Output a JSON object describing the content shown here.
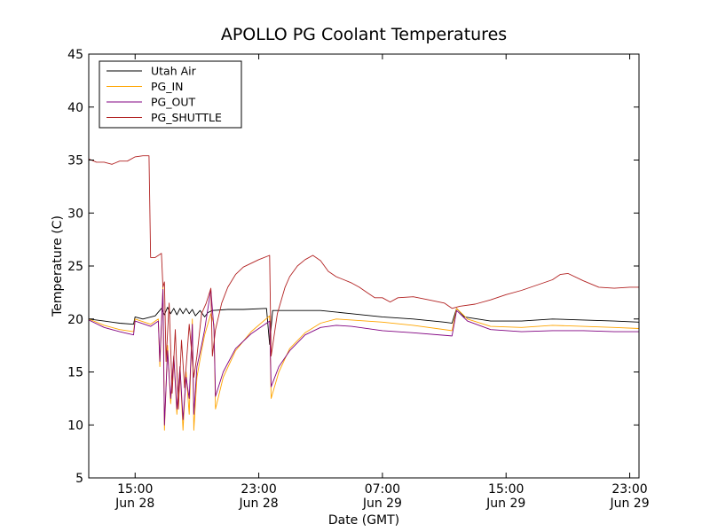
{
  "chart_data": {
    "type": "line",
    "title": "APOLLO PG Coolant Temperatures",
    "xlabel": "Date (GMT)",
    "ylabel": "Temperature (C)",
    "x_unit": "hours since 2013-06-28 12:00 GMT",
    "xlim": [
      0,
      35.6
    ],
    "ylim": [
      5,
      45
    ],
    "yticks": [
      5,
      10,
      15,
      20,
      25,
      30,
      35,
      40,
      45
    ],
    "xticks": [
      {
        "x": 3,
        "time": "15:00",
        "date": "Jun 28"
      },
      {
        "x": 11,
        "time": "23:00",
        "date": "Jun 28"
      },
      {
        "x": 19,
        "time": "07:00",
        "date": "Jun 29"
      },
      {
        "x": 27,
        "time": "15:00",
        "date": "Jun 29"
      },
      {
        "x": 35,
        "time": "23:00",
        "date": "Jun 29"
      }
    ],
    "legend_position": "top-left",
    "series": [
      {
        "name": "Utah Air",
        "color": "#000000",
        "points": [
          [
            0,
            20.0
          ],
          [
            1,
            19.8
          ],
          [
            2,
            19.6
          ],
          [
            2.9,
            19.5
          ],
          [
            3.0,
            20.2
          ],
          [
            3.5,
            20.0
          ],
          [
            4.3,
            20.3
          ],
          [
            4.7,
            21.0
          ],
          [
            4.9,
            20.4
          ],
          [
            5.1,
            21.1
          ],
          [
            5.3,
            20.5
          ],
          [
            5.5,
            21.0
          ],
          [
            5.7,
            20.4
          ],
          [
            5.9,
            21.0
          ],
          [
            6.1,
            20.5
          ],
          [
            6.3,
            21.0
          ],
          [
            6.5,
            20.5
          ],
          [
            6.7,
            20.9
          ],
          [
            6.9,
            20.3
          ],
          [
            7.2,
            20.8
          ],
          [
            7.5,
            20.2
          ],
          [
            7.7,
            20.6
          ],
          [
            8.0,
            20.8
          ],
          [
            9,
            20.9
          ],
          [
            10,
            20.9
          ],
          [
            11.5,
            21.0
          ],
          [
            11.7,
            17.6
          ],
          [
            11.9,
            20.8
          ],
          [
            13,
            20.8
          ],
          [
            15,
            20.8
          ],
          [
            17,
            20.5
          ],
          [
            19,
            20.2
          ],
          [
            21,
            20.0
          ],
          [
            23,
            19.7
          ],
          [
            23.5,
            19.6
          ],
          [
            23.8,
            21.0
          ],
          [
            24.3,
            20.2
          ],
          [
            26,
            19.8
          ],
          [
            28,
            19.8
          ],
          [
            30,
            20.0
          ],
          [
            32,
            19.9
          ],
          [
            34,
            19.8
          ],
          [
            35.6,
            19.7
          ]
        ]
      },
      {
        "name": "PG_IN",
        "color": "#ffa500",
        "points": [
          [
            0,
            20.0
          ],
          [
            1,
            19.4
          ],
          [
            2,
            19.0
          ],
          [
            2.9,
            18.8
          ],
          [
            3.0,
            20.0
          ],
          [
            4.0,
            19.5
          ],
          [
            4.5,
            20.0
          ],
          [
            4.6,
            15.5
          ],
          [
            4.8,
            23.0
          ],
          [
            4.9,
            9.5
          ],
          [
            5.1,
            17.5
          ],
          [
            5.3,
            12.0
          ],
          [
            5.5,
            16.5
          ],
          [
            5.7,
            11.0
          ],
          [
            5.9,
            15.5
          ],
          [
            6.1,
            9.5
          ],
          [
            6.3,
            15.0
          ],
          [
            6.5,
            11.0
          ],
          [
            6.7,
            20.0
          ],
          [
            6.8,
            9.5
          ],
          [
            7.0,
            14.5
          ],
          [
            7.3,
            17.0
          ],
          [
            7.5,
            18.5
          ],
          [
            7.9,
            20.5
          ],
          [
            8.1,
            19.5
          ],
          [
            8.2,
            11.5
          ],
          [
            8.7,
            14.5
          ],
          [
            9.5,
            17.0
          ],
          [
            10.5,
            18.8
          ],
          [
            11.7,
            20.3
          ],
          [
            11.8,
            12.5
          ],
          [
            12.3,
            15.0
          ],
          [
            13,
            17.2
          ],
          [
            14,
            18.7
          ],
          [
            15,
            19.6
          ],
          [
            16,
            20.0
          ],
          [
            17,
            19.9
          ],
          [
            19,
            19.7
          ],
          [
            21,
            19.4
          ],
          [
            23.5,
            18.9
          ],
          [
            23.8,
            21.0
          ],
          [
            24.5,
            20.0
          ],
          [
            26,
            19.3
          ],
          [
            28,
            19.2
          ],
          [
            30,
            19.4
          ],
          [
            32,
            19.3
          ],
          [
            34,
            19.2
          ],
          [
            35.6,
            19.1
          ]
        ]
      },
      {
        "name": "PG_OUT",
        "color": "#800080",
        "points": [
          [
            0,
            19.9
          ],
          [
            1,
            19.2
          ],
          [
            2,
            18.8
          ],
          [
            2.9,
            18.5
          ],
          [
            3.0,
            19.8
          ],
          [
            4.0,
            19.3
          ],
          [
            4.5,
            19.8
          ],
          [
            4.6,
            16.0
          ],
          [
            4.8,
            22.8
          ],
          [
            4.9,
            10.0
          ],
          [
            5.1,
            17.0
          ],
          [
            5.3,
            12.5
          ],
          [
            5.5,
            16.5
          ],
          [
            5.7,
            11.5
          ],
          [
            5.9,
            15.5
          ],
          [
            6.1,
            10.5
          ],
          [
            6.3,
            14.5
          ],
          [
            6.5,
            12.5
          ],
          [
            6.7,
            19.5
          ],
          [
            6.8,
            11.0
          ],
          [
            7.0,
            15.5
          ],
          [
            7.3,
            17.5
          ],
          [
            7.5,
            19.0
          ],
          [
            7.9,
            22.8
          ],
          [
            8.1,
            19.0
          ],
          [
            8.2,
            12.7
          ],
          [
            8.7,
            15.0
          ],
          [
            9.5,
            17.2
          ],
          [
            10.5,
            18.6
          ],
          [
            11.7,
            19.8
          ],
          [
            11.8,
            13.6
          ],
          [
            12.3,
            15.5
          ],
          [
            13,
            17.0
          ],
          [
            14,
            18.5
          ],
          [
            15,
            19.2
          ],
          [
            16,
            19.4
          ],
          [
            17,
            19.3
          ],
          [
            19,
            18.9
          ],
          [
            21,
            18.7
          ],
          [
            23.5,
            18.4
          ],
          [
            23.8,
            20.8
          ],
          [
            24.5,
            19.8
          ],
          [
            26,
            19.0
          ],
          [
            28,
            18.8
          ],
          [
            30,
            18.9
          ],
          [
            32,
            18.9
          ],
          [
            34,
            18.8
          ],
          [
            35.6,
            18.8
          ]
        ]
      },
      {
        "name": "PG_SHUTTLE",
        "color": "#b22222",
        "points": [
          [
            0,
            35.1
          ],
          [
            0.5,
            34.8
          ],
          [
            1,
            34.8
          ],
          [
            1.5,
            34.6
          ],
          [
            2,
            34.9
          ],
          [
            2.5,
            34.9
          ],
          [
            3,
            35.3
          ],
          [
            3.5,
            35.4
          ],
          [
            3.9,
            35.4
          ],
          [
            4.0,
            25.8
          ],
          [
            4.3,
            25.8
          ],
          [
            4.7,
            26.2
          ],
          [
            4.8,
            23.0
          ],
          [
            4.9,
            23.5
          ],
          [
            5.0,
            16.0
          ],
          [
            5.2,
            21.5
          ],
          [
            5.4,
            13.0
          ],
          [
            5.6,
            19.0
          ],
          [
            5.8,
            11.5
          ],
          [
            6.0,
            18.0
          ],
          [
            6.2,
            13.5
          ],
          [
            6.5,
            19.5
          ],
          [
            6.8,
            14.5
          ],
          [
            7.0,
            16.5
          ],
          [
            7.3,
            20.5
          ],
          [
            7.6,
            21.5
          ],
          [
            7.9,
            22.9
          ],
          [
            8.0,
            16.5
          ],
          [
            8.2,
            19.0
          ],
          [
            8.6,
            21.5
          ],
          [
            9,
            23.0
          ],
          [
            9.5,
            24.2
          ],
          [
            10,
            24.9
          ],
          [
            11,
            25.6
          ],
          [
            11.7,
            26.0
          ],
          [
            11.8,
            16.5
          ],
          [
            12.2,
            20.5
          ],
          [
            12.7,
            23.0
          ],
          [
            13,
            24.0
          ],
          [
            13.5,
            25.0
          ],
          [
            14,
            25.6
          ],
          [
            14.5,
            26.0
          ],
          [
            15,
            25.5
          ],
          [
            15.5,
            24.5
          ],
          [
            16,
            24.0
          ],
          [
            16.5,
            23.7
          ],
          [
            17,
            23.4
          ],
          [
            17.5,
            23.0
          ],
          [
            18,
            22.5
          ],
          [
            18.5,
            22.0
          ],
          [
            19,
            22.0
          ],
          [
            19.5,
            21.6
          ],
          [
            20,
            22.0
          ],
          [
            21,
            22.1
          ],
          [
            22,
            21.8
          ],
          [
            23,
            21.5
          ],
          [
            23.5,
            21.0
          ],
          [
            24,
            21.2
          ],
          [
            25,
            21.4
          ],
          [
            26,
            21.8
          ],
          [
            27,
            22.3
          ],
          [
            28,
            22.7
          ],
          [
            29,
            23.2
          ],
          [
            30,
            23.7
          ],
          [
            30.5,
            24.2
          ],
          [
            31,
            24.3
          ],
          [
            32,
            23.6
          ],
          [
            33,
            23.0
          ],
          [
            34,
            22.9
          ],
          [
            35,
            23.0
          ],
          [
            35.6,
            23.0
          ]
        ]
      }
    ]
  }
}
